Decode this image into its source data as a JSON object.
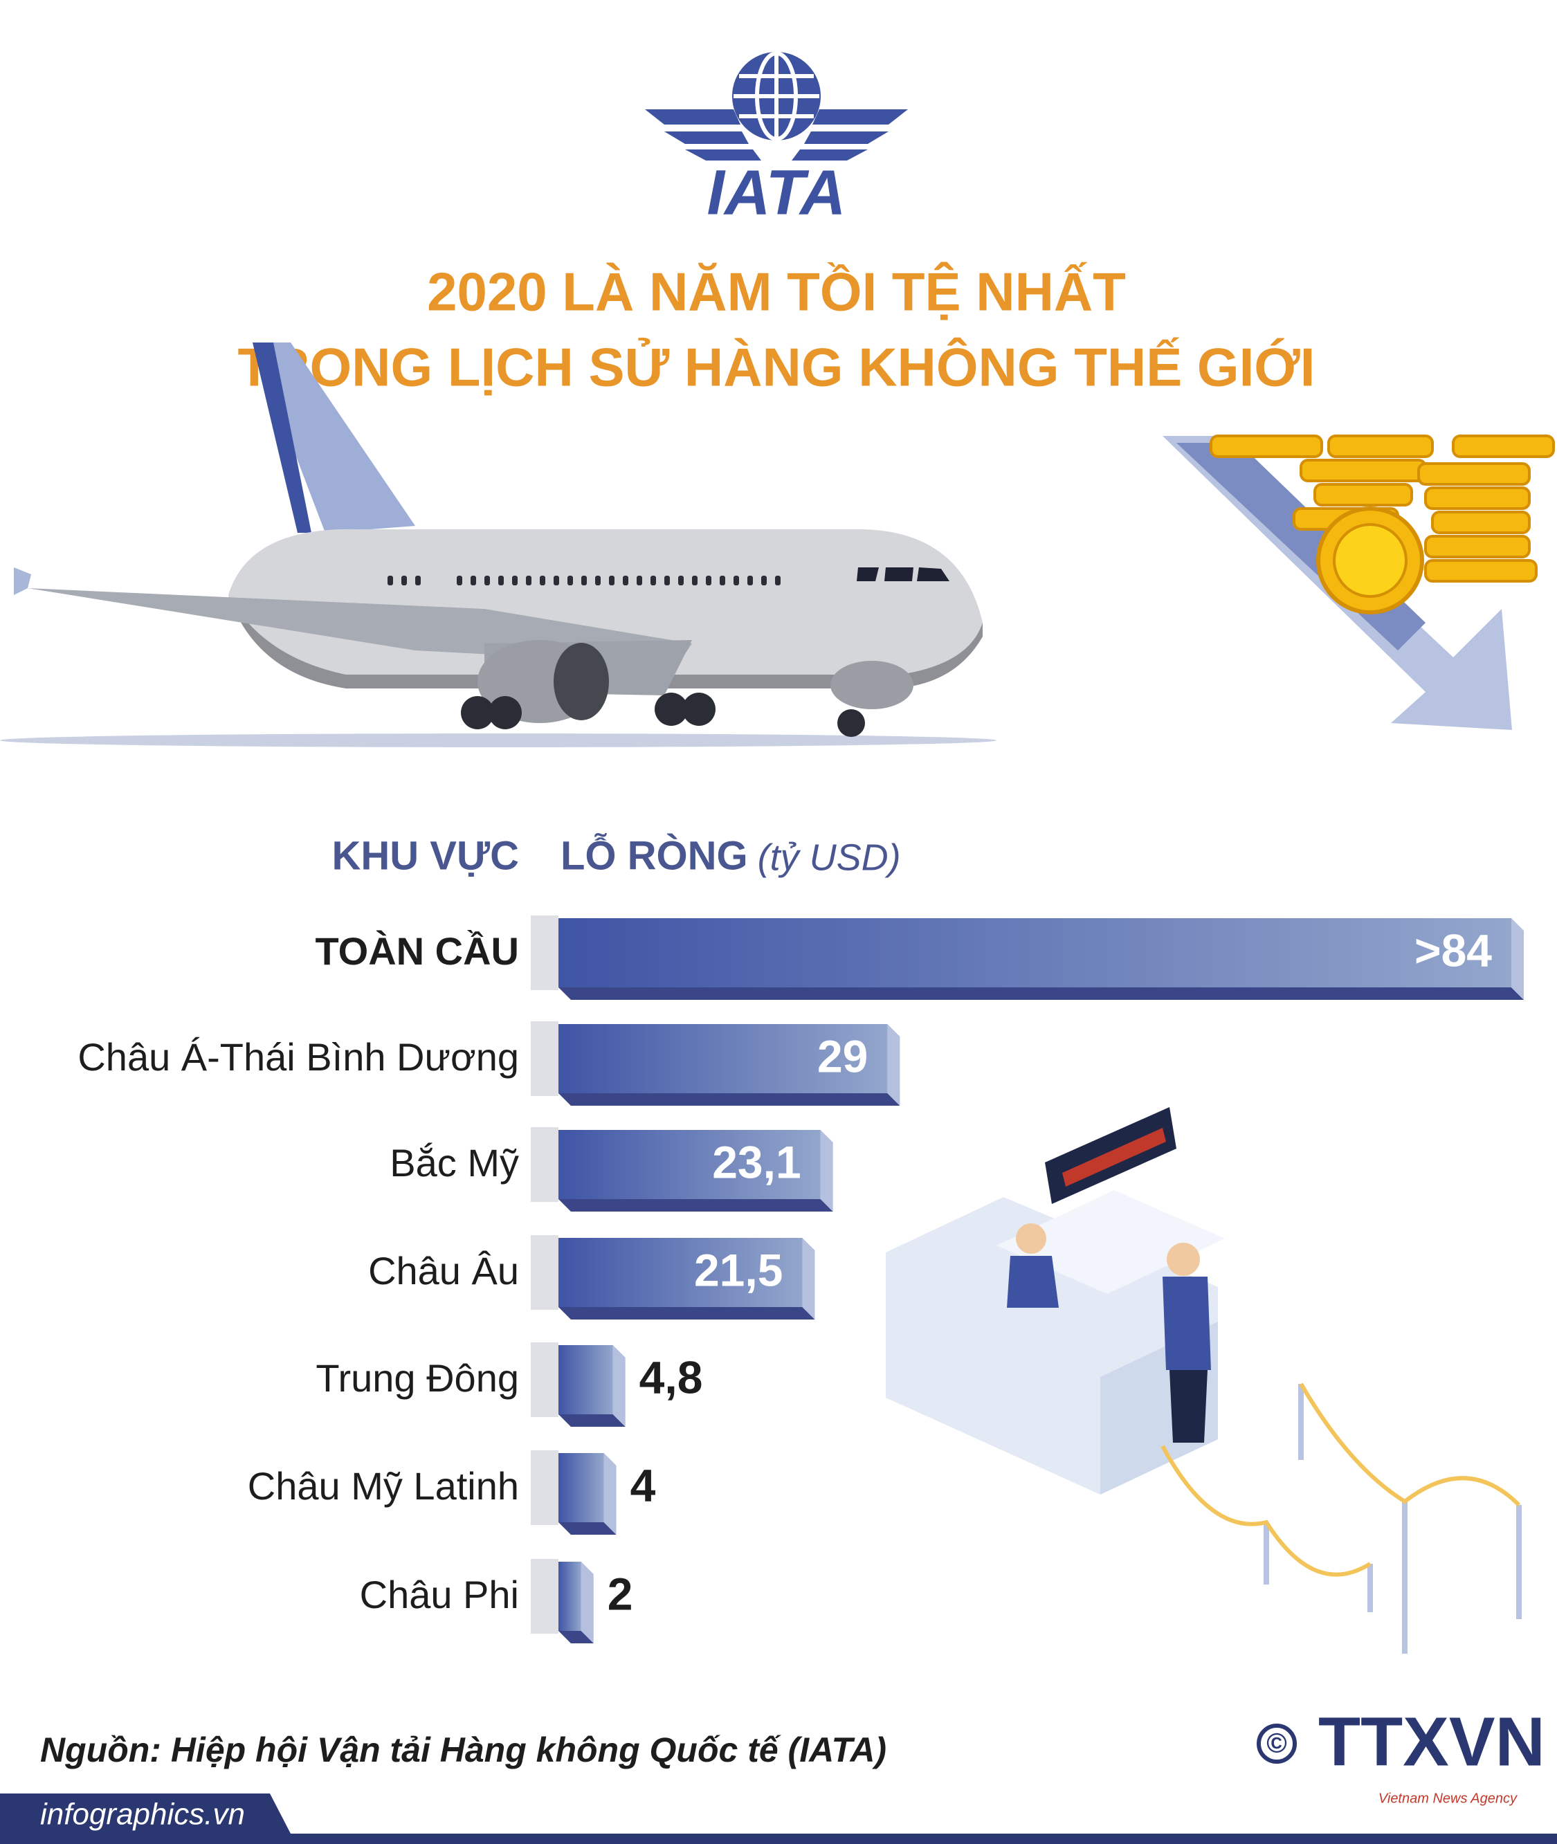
{
  "header": {
    "logo": "IATA",
    "title_lines": [
      "2020 LÀ NĂM TỒI TỆ NHẤT",
      "TRONG LỊCH SỬ HÀNG KHÔNG THẾ GIỚI"
    ]
  },
  "chart_data": {
    "type": "bar",
    "orientation": "horizontal",
    "category_header": "KHU VỰC",
    "value_header": "LỖ RÒNG",
    "unit": "(tỷ USD)",
    "categories": [
      "TOÀN CẦU",
      "Châu Á-Thái Bình Dương",
      "Bắc Mỹ",
      "Châu Âu",
      "Trung Đông",
      "Châu Mỹ Latinh",
      "Châu Phi"
    ],
    "values": [
      84,
      29,
      23.1,
      21.5,
      4.8,
      4,
      2
    ],
    "value_labels": [
      ">84",
      "29",
      "23,1",
      "21,5",
      "4,8",
      "4",
      "2"
    ],
    "color": "#3f55a5",
    "color_end": "#93a6cc"
  },
  "footer": {
    "source": "Nguồn: Hiệp hội Vận tải Hàng không Quốc tế (IATA)",
    "site": "infographics.vn",
    "copyright": "©",
    "agency": "TTXVN",
    "agency_sub": "Vietnam News Agency"
  }
}
